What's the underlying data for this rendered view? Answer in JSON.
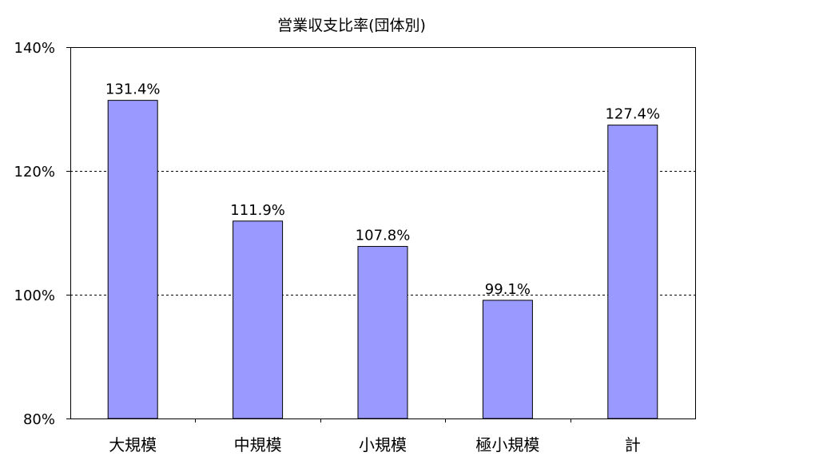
{
  "chart_data": {
    "type": "bar",
    "title": "営業収支比率(団体別)",
    "xlabel": "",
    "ylabel": "",
    "categories": [
      "大規模",
      "中規模",
      "小規模",
      "極小規模",
      "計"
    ],
    "values": [
      131.4,
      111.9,
      107.8,
      99.1,
      127.4
    ],
    "value_labels": [
      "131.4%",
      "111.9%",
      "107.8%",
      "99.1%",
      "127.4%"
    ],
    "ylim": [
      80,
      140
    ],
    "yticks": [
      80,
      100,
      120,
      140
    ],
    "ytick_labels": [
      "80%",
      "100%",
      "120%",
      "140%"
    ],
    "grid": "dashed horizontal",
    "legend": "none",
    "colors": {
      "bar_fill": "#9999ff",
      "bar_stroke": "#000000",
      "axis": "#000000",
      "grid": "#000000"
    }
  }
}
